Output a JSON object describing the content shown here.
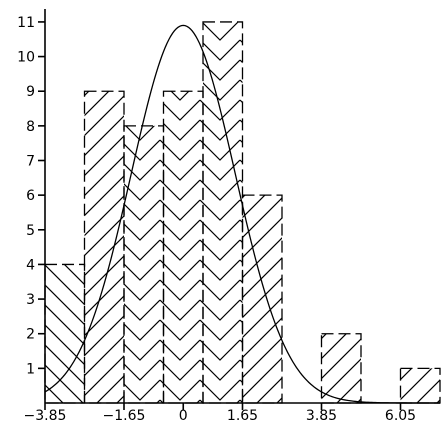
{
  "chart_data": {
    "type": "bar",
    "title": "",
    "xlabel": "",
    "ylabel": "",
    "bin_width": 1.1,
    "bars": [
      {
        "x0": -3.85,
        "x1": -2.75,
        "value": 4,
        "hatch": "diag-down"
      },
      {
        "x0": -2.75,
        "x1": -1.65,
        "value": 9,
        "hatch": "diag-up"
      },
      {
        "x0": -1.65,
        "x1": -0.55,
        "value": 8,
        "hatch": "chevron"
      },
      {
        "x0": -0.55,
        "x1": 0.55,
        "value": 9,
        "hatch": "chevron"
      },
      {
        "x0": 0.55,
        "x1": 1.65,
        "value": 11,
        "hatch": "chevron"
      },
      {
        "x0": 1.65,
        "x1": 2.75,
        "value": 6,
        "hatch": "diag-up"
      },
      {
        "x0": 2.75,
        "x1": 3.85,
        "value": 0,
        "hatch": "none"
      },
      {
        "x0": 3.85,
        "x1": 4.95,
        "value": 2,
        "hatch": "diag-up"
      },
      {
        "x0": 4.95,
        "x1": 6.05,
        "value": 0,
        "hatch": "none"
      },
      {
        "x0": 6.05,
        "x1": 7.15,
        "value": 1,
        "hatch": "diag-up"
      }
    ],
    "curve": {
      "type": "normal",
      "peak": 10.9,
      "mean": 0,
      "sd": 1.45
    },
    "x_ticks": [
      -3.85,
      -1.65,
      0,
      1.65,
      3.85,
      6.05
    ],
    "x_tick_labels": [
      "−3.85",
      "−1.65",
      "0",
      "1.65",
      "3.85",
      "6.05"
    ],
    "y_ticks": [
      1,
      2,
      3,
      4,
      5,
      6,
      7,
      8,
      9,
      10,
      11
    ],
    "xlim": [
      -3.85,
      7.15
    ],
    "ylim": [
      0,
      11.2
    ],
    "grid": false,
    "legend": "none"
  }
}
